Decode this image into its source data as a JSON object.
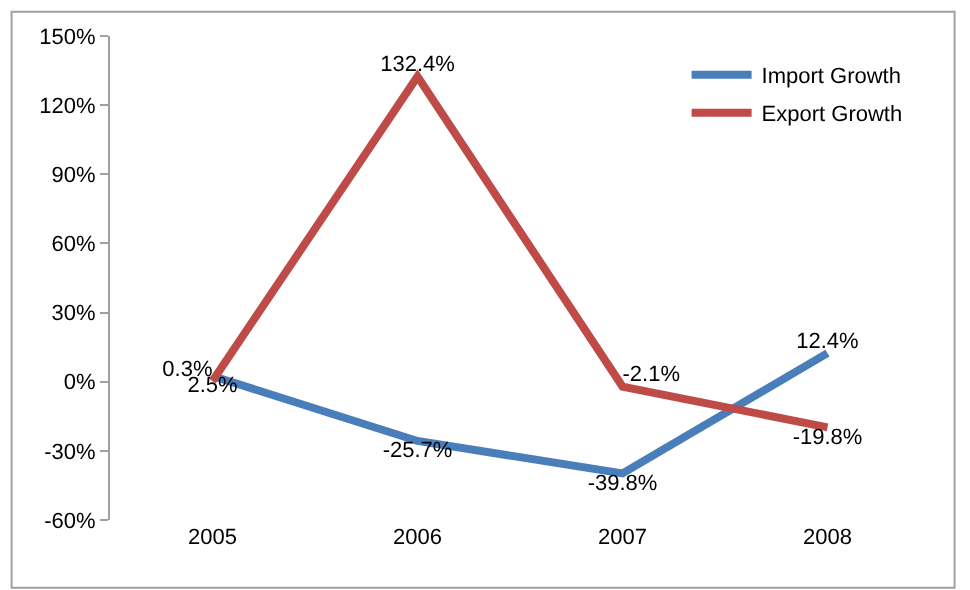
{
  "chart_data": {
    "type": "line",
    "categories": [
      "2005",
      "2006",
      "2007",
      "2008"
    ],
    "series": [
      {
        "name": "Import Growth",
        "color": "#4a7ebb",
        "values": [
          2.5,
          -25.7,
          -39.8,
          12.4
        ],
        "value_labels": [
          "2.5%",
          "-25.7%",
          "-39.8%",
          "12.4%"
        ]
      },
      {
        "name": "Export Growth",
        "color": "#be4b48",
        "values": [
          0.3,
          132.4,
          -2.1,
          -19.8
        ],
        "value_labels": [
          "0.3%",
          "132.4%",
          "-2.1%",
          "-19.8%"
        ]
      }
    ],
    "ylim": [
      -60,
      150
    ],
    "yticks": [
      {
        "value": -60,
        "label": "-60%"
      },
      {
        "value": -30,
        "label": "-30%"
      },
      {
        "value": 0,
        "label": "0%"
      },
      {
        "value": 30,
        "label": "30%"
      },
      {
        "value": 60,
        "label": "60%"
      },
      {
        "value": 90,
        "label": "90%"
      },
      {
        "value": 120,
        "label": "120%"
      },
      {
        "value": 150,
        "label": "150%"
      }
    ],
    "legend": "top right",
    "marker": "none",
    "line_style": "solid"
  }
}
